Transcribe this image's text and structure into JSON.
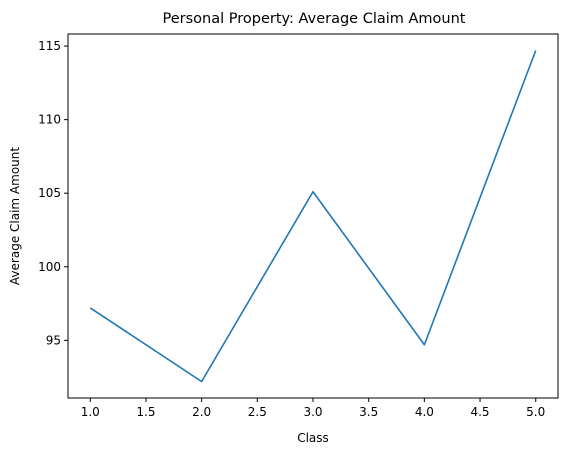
{
  "chart_data": {
    "type": "line",
    "title": "Personal Property: Average Claim Amount",
    "xlabel": "Class",
    "ylabel": "Average Claim Amount",
    "x": [
      1.0,
      2.0,
      3.0,
      4.0,
      5.0
    ],
    "series": [
      {
        "values": [
          97.2,
          92.2,
          105.1,
          94.7,
          114.7
        ],
        "color": "#1f77b4"
      }
    ],
    "xlim": [
      0.8,
      5.2
    ],
    "ylim": [
      91.08,
      115.82
    ],
    "xticks": [
      1.0,
      1.5,
      2.0,
      2.5,
      3.0,
      3.5,
      4.0,
      4.5,
      5.0
    ],
    "xtick_labels": [
      "1.0",
      "1.5",
      "2.0",
      "2.5",
      "3.0",
      "3.5",
      "4.0",
      "4.5",
      "5.0"
    ],
    "yticks": [
      95,
      100,
      105,
      110,
      115
    ],
    "ytick_labels": [
      "95",
      "100",
      "105",
      "110",
      "115"
    ],
    "grid": false,
    "legend": "none"
  }
}
